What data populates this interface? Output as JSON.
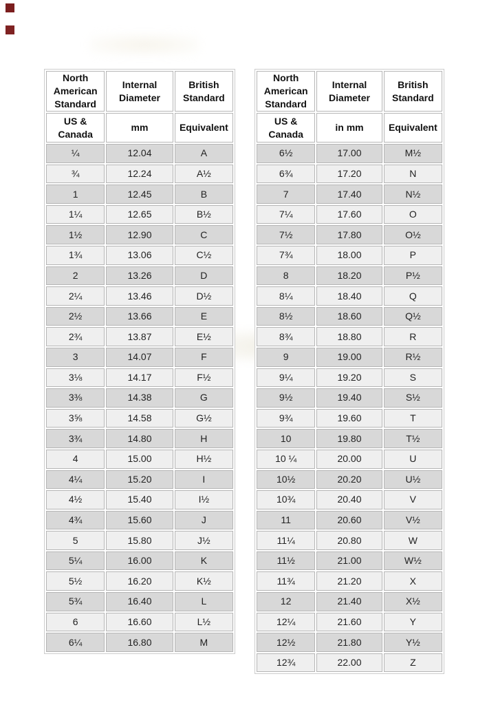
{
  "page": {
    "background": "#ffffff"
  },
  "colors": {
    "row_dark": "#d8d8d8",
    "row_light": "#efefef",
    "cell_border": "#b5b5b5",
    "header_text": "#111111",
    "body_text": "#222222",
    "corner_square": "#7b1e1e"
  },
  "decor": {
    "corner_squares": [
      {
        "name": "corner-square-top",
        "color": "#7b1e1e"
      },
      {
        "name": "corner-square-bottom",
        "color": "#7f2222"
      }
    ]
  },
  "tables": [
    {
      "header": {
        "col1": "North American Standard",
        "col2": "Internal Diameter",
        "col3": "British Standard"
      },
      "subheader": {
        "col1": "US & Canada",
        "col2": "mm",
        "col3": "Equivalent"
      },
      "rows": [
        [
          "¼",
          "12.04",
          "A"
        ],
        [
          "¾",
          "12.24",
          "A½"
        ],
        [
          "1",
          "12.45",
          "B"
        ],
        [
          "1¼",
          "12.65",
          "B½"
        ],
        [
          "1½",
          "12.90",
          "C"
        ],
        [
          "1¾",
          "13.06",
          "C½"
        ],
        [
          "2",
          "13.26",
          "D"
        ],
        [
          "2¼",
          "13.46",
          "D½"
        ],
        [
          "2½",
          "13.66",
          "E"
        ],
        [
          "2¾",
          "13.87",
          "E½"
        ],
        [
          "3",
          "14.07",
          "F"
        ],
        [
          "3⅛",
          "14.17",
          "F½"
        ],
        [
          "3⅜",
          "14.38",
          "G"
        ],
        [
          "3⅝",
          "14.58",
          "G½"
        ],
        [
          "3¾",
          "14.80",
          "H"
        ],
        [
          "4",
          "15.00",
          "H½"
        ],
        [
          "4¼",
          "15.20",
          "I"
        ],
        [
          "4½",
          "15.40",
          "I½"
        ],
        [
          "4¾",
          "15.60",
          "J"
        ],
        [
          "5",
          "15.80",
          "J½"
        ],
        [
          "5¼",
          "16.00",
          "K"
        ],
        [
          "5½",
          "16.20",
          "K½"
        ],
        [
          "5¾",
          "16.40",
          "L"
        ],
        [
          "6",
          "16.60",
          "L½"
        ],
        [
          "6¼",
          "16.80",
          "M"
        ]
      ]
    },
    {
      "header": {
        "col1": "North American Standard",
        "col2": "Internal Diameter",
        "col3": "British Standard"
      },
      "subheader": {
        "col1": "US & Canada",
        "col2": "in mm",
        "col3": "Equivalent"
      },
      "rows": [
        [
          "6½",
          "17.00",
          "M½"
        ],
        [
          "6¾",
          "17.20",
          "N"
        ],
        [
          "7",
          "17.40",
          "N½"
        ],
        [
          "7¼",
          "17.60",
          "O"
        ],
        [
          "7½",
          "17.80",
          "O½"
        ],
        [
          "7¾",
          "18.00",
          "P"
        ],
        [
          "8",
          "18.20",
          "P½"
        ],
        [
          "8¼",
          "18.40",
          "Q"
        ],
        [
          "8½",
          "18.60",
          "Q½"
        ],
        [
          "8¾",
          "18.80",
          "R"
        ],
        [
          "9",
          "19.00",
          "R½"
        ],
        [
          "9¼",
          "19.20",
          "S"
        ],
        [
          "9½",
          "19.40",
          "S½"
        ],
        [
          "9¾",
          "19.60",
          "T"
        ],
        [
          "10",
          "19.80",
          "T½"
        ],
        [
          "10 ¼",
          "20.00",
          "U"
        ],
        [
          "10½",
          "20.20",
          "U½"
        ],
        [
          "10¾",
          "20.40",
          "V"
        ],
        [
          "11",
          "20.60",
          "V½"
        ],
        [
          "11¼",
          "20.80",
          "W"
        ],
        [
          "11½",
          "21.00",
          "W½"
        ],
        [
          "11¾",
          "21.20",
          "X"
        ],
        [
          "12",
          "21.40",
          "X½"
        ],
        [
          "12¼",
          "21.60",
          "Y"
        ],
        [
          "12½",
          "21.80",
          "Y½"
        ],
        [
          "12¾",
          "22.00",
          "Z"
        ]
      ]
    }
  ]
}
